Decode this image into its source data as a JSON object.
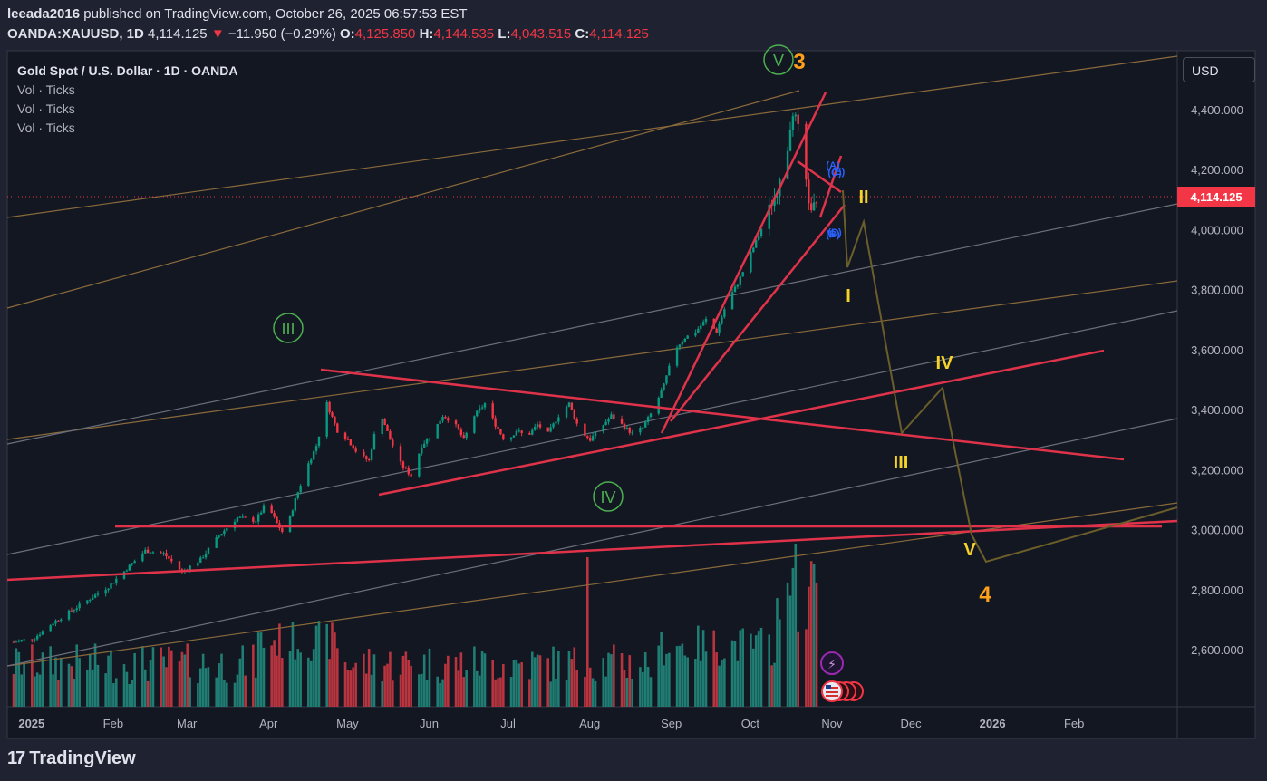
{
  "header": {
    "publisher": "leeada2016",
    "published_text": "published on TradingView.com, October 26, 2025 06:57:53 EST",
    "symbol": "OANDA:XAUUSD, 1D",
    "last": "4,114.125",
    "change_arrow": "▼",
    "change": "−11.950 (−0.29%)",
    "o_label": "O:",
    "o_value": "4,125.850",
    "h_label": "H:",
    "h_value": "4,144.535",
    "l_label": "L:",
    "l_value": "4,043.515",
    "c_label": "C:",
    "c_value": "4,114.125"
  },
  "legend": {
    "title": "Gold Spot / U.S. Dollar · 1D · OANDA",
    "indicators": [
      "Vol · Ticks",
      "Vol · Ticks",
      "Vol · Ticks"
    ]
  },
  "currency_button": "USD",
  "footer": {
    "brand": "TradingView",
    "logo_glyph": "17"
  },
  "colors": {
    "background": "#131722",
    "frame": "#1f2230",
    "up": "#089981",
    "down": "#f23645",
    "trendline_red": "#e0334a",
    "channel_brown": "#8a6a3a",
    "channel_gray": "#6b6f7b",
    "wave_green": "#4caf50",
    "wave_yellow": "#f5d328",
    "wave_orange": "#ff9f1a",
    "projection": "#6b5e2a"
  },
  "chart_data": {
    "type": "candlestick",
    "title": "Gold Spot / U.S. Dollar · 1D · OANDA",
    "ylim": [
      2480,
      4530
    ],
    "y_ticks": [
      {
        "value": 4400,
        "label": "4,400.000"
      },
      {
        "value": 4200,
        "label": "4,200.000"
      },
      {
        "value": 4000,
        "label": "4,000.000"
      },
      {
        "value": 3800,
        "label": "3,800.000"
      },
      {
        "value": 3600,
        "label": "3,600.000"
      },
      {
        "value": 3400,
        "label": "3,400.000"
      },
      {
        "value": 3200,
        "label": "3,200.000"
      },
      {
        "value": 3000,
        "label": "3,000.000"
      },
      {
        "value": 2800,
        "label": "2,800.000"
      },
      {
        "value": 2600,
        "label": "2,600.000"
      }
    ],
    "last_price": {
      "value": 4114.125,
      "label": "4,114.125"
    },
    "x_labels": [
      {
        "day": 2,
        "label": "2025"
      },
      {
        "day": 33,
        "label": "Feb"
      },
      {
        "day": 61,
        "label": "Mar"
      },
      {
        "day": 92,
        "label": "Apr"
      },
      {
        "day": 122,
        "label": "May"
      },
      {
        "day": 153,
        "label": "Jun"
      },
      {
        "day": 183,
        "label": "Jul"
      },
      {
        "day": 214,
        "label": "Aug"
      },
      {
        "day": 245,
        "label": "Sep"
      },
      {
        "day": 275,
        "label": "Oct"
      },
      {
        "day": 306,
        "label": "Nov"
      },
      {
        "day": 336,
        "label": "Dec"
      },
      {
        "day": 367,
        "label": "2026"
      },
      {
        "day": 398,
        "label": "Feb"
      }
    ],
    "price_path": [
      [
        0,
        2625
      ],
      [
        8,
        2640
      ],
      [
        15,
        2690
      ],
      [
        22,
        2730
      ],
      [
        29,
        2770
      ],
      [
        36,
        2810
      ],
      [
        43,
        2870
      ],
      [
        50,
        2930
      ],
      [
        57,
        2920
      ],
      [
        64,
        2860
      ],
      [
        71,
        2900
      ],
      [
        78,
        2980
      ],
      [
        85,
        3040
      ],
      [
        92,
        3030
      ],
      [
        96,
        3090
      ],
      [
        100,
        3020
      ],
      [
        103,
        2980
      ],
      [
        107,
        3100
      ],
      [
        111,
        3200
      ],
      [
        115,
        3280
      ],
      [
        119,
        3420
      ],
      [
        123,
        3330
      ],
      [
        127,
        3300
      ],
      [
        131,
        3250
      ],
      [
        135,
        3230
      ],
      [
        139,
        3400
      ],
      [
        143,
        3300
      ],
      [
        147,
        3220
      ],
      [
        151,
        3180
      ],
      [
        155,
        3280
      ],
      [
        159,
        3320
      ],
      [
        163,
        3380
      ],
      [
        167,
        3360
      ],
      [
        171,
        3300
      ],
      [
        175,
        3380
      ],
      [
        179,
        3420
      ],
      [
        183,
        3350
      ],
      [
        187,
        3290
      ],
      [
        191,
        3330
      ],
      [
        195,
        3310
      ],
      [
        199,
        3350
      ],
      [
        203,
        3320
      ],
      [
        207,
        3380
      ],
      [
        211,
        3420
      ],
      [
        215,
        3330
      ],
      [
        219,
        3300
      ],
      [
        223,
        3340
      ],
      [
        227,
        3380
      ],
      [
        231,
        3350
      ],
      [
        235,
        3320
      ],
      [
        239,
        3340
      ],
      [
        243,
        3400
      ],
      [
        247,
        3480
      ],
      [
        251,
        3600
      ],
      [
        255,
        3640
      ],
      [
        259,
        3660
      ],
      [
        263,
        3700
      ],
      [
        267,
        3660
      ],
      [
        271,
        3760
      ],
      [
        275,
        3820
      ],
      [
        279,
        3900
      ],
      [
        283,
        3980
      ],
      [
        287,
        4070
      ],
      [
        291,
        4150
      ],
      [
        293,
        4200
      ],
      [
        295,
        4350
      ],
      [
        297,
        4370
      ],
      [
        299,
        4300
      ],
      [
        301,
        4150
      ],
      [
        303,
        4050
      ],
      [
        305,
        4100
      ],
      [
        307,
        4114
      ]
    ],
    "volume_ylim": [
      0,
      1
    ],
    "wave_labels_green": [
      "III",
      "IV",
      "V"
    ],
    "wave_labels_yellow": [
      "I",
      "II",
      "III",
      "IV",
      "V"
    ],
    "wave_labels_orange": [
      "3",
      "4"
    ],
    "wave_labels_blue": [
      "(A)",
      "(B)",
      "(C)",
      "(D)",
      "(E)"
    ]
  }
}
